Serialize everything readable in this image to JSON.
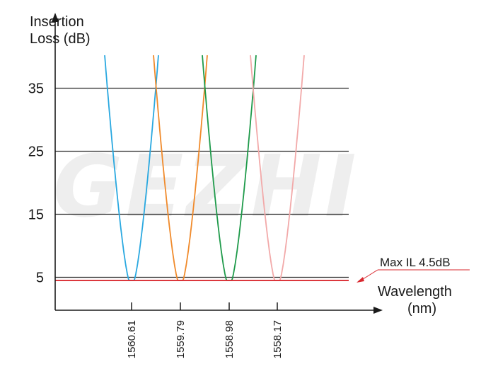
{
  "chart_data": {
    "type": "line",
    "watermark": "GEZHI",
    "ylabel_line1": "Insertion",
    "ylabel_line2": "Loss (dB)",
    "xlabel_line1": "Wavelength",
    "xlabel_line2": "(nm)",
    "ylim": [
      0,
      40
    ],
    "yticks": [
      "5",
      "15",
      "25",
      "35"
    ],
    "ytick_values": [
      5,
      15,
      25,
      35
    ],
    "grid": true,
    "categories": [
      "1560.61",
      "1559.79",
      "1558.98",
      "1558.17"
    ],
    "threshold": {
      "label": "Max IL 4.5dB",
      "value": 4.5,
      "color": "#d9282f"
    },
    "series": [
      {
        "center": "1560.61",
        "min_loss": 4.5,
        "color": "#29a8e0"
      },
      {
        "center": "1559.79",
        "min_loss": 4.5,
        "color": "#f08a2b"
      },
      {
        "center": "1558.98",
        "min_loss": 4.5,
        "color": "#1e9a4a"
      },
      {
        "center": "1558.17",
        "min_loss": 4.5,
        "color": "#f2a9a9"
      }
    ]
  }
}
